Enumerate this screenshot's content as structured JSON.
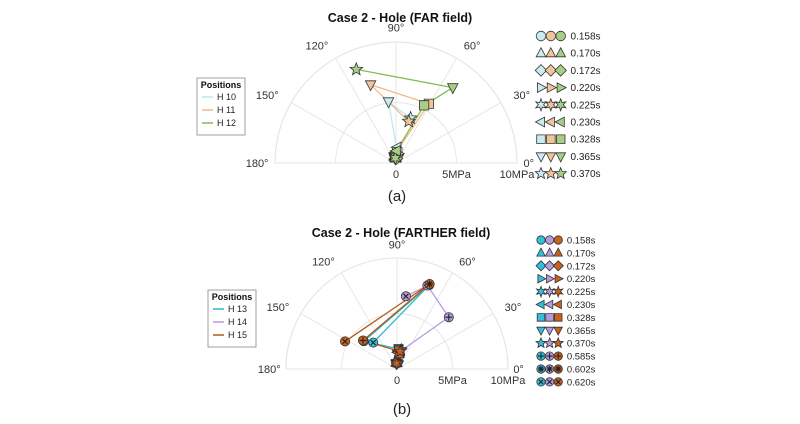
{
  "colors": {
    "series_top": [
      "#c8ecef",
      "#f3c39a",
      "#a6cf84"
    ],
    "series_bottom": [
      "#33bfd9",
      "#b69ae0",
      "#c8601e"
    ],
    "series_top_line": [
      "#bfe9ee",
      "#f4b886",
      "#7fbf52"
    ],
    "series_bottom_line": [
      "#2fb8cc",
      "#b89be6",
      "#b45a14"
    ],
    "grid": "#e4e4e4",
    "axis_text": "#333333"
  },
  "captions": [
    "(a)",
    "(b)"
  ],
  "chart_data": [
    {
      "type": "polar-scatter",
      "title": "Case 2 - Hole (FAR field)",
      "angle_ticks": [
        "0°",
        "30°",
        "60°",
        "90°",
        "120°",
        "150°",
        "180°"
      ],
      "radius_ticks": [
        "0",
        "5MPa",
        "10MPa"
      ],
      "rlim": [
        0,
        10
      ],
      "thetalim": [
        0,
        180
      ],
      "legend_title": "Positions",
      "legend_placement": "left",
      "series": [
        {
          "name": "H 10",
          "points": [
            {
              "time": "0.158s",
              "theta": 95,
              "r": 0.5
            },
            {
              "time": "0.170s",
              "theta": 90,
              "r": 0.5
            },
            {
              "time": "0.172s",
              "theta": 92,
              "r": 0.6
            },
            {
              "time": "0.220s",
              "theta": 80,
              "r": 0.7
            },
            {
              "time": "0.225s",
              "theta": 100,
              "r": 0.6
            },
            {
              "time": "0.230s",
              "theta": 86,
              "r": 1.3
            },
            {
              "time": "0.328s",
              "theta": 83,
              "r": 0.9
            },
            {
              "time": "0.365s",
              "theta": 97,
              "r": 5.1
            },
            {
              "time": "0.370s",
              "theta": 72,
              "r": 3.9
            }
          ]
        },
        {
          "name": "H 11",
          "points": [
            {
              "time": "0.158s",
              "theta": 93,
              "r": 0.6
            },
            {
              "time": "0.170s",
              "theta": 88,
              "r": 0.6
            },
            {
              "time": "0.172s",
              "theta": 87,
              "r": 0.6
            },
            {
              "time": "0.220s",
              "theta": 77,
              "r": 0.8
            },
            {
              "time": "0.225s",
              "theta": 102,
              "r": 0.5
            },
            {
              "time": "0.230s",
              "theta": 89,
              "r": 0.9
            },
            {
              "time": "0.328s",
              "theta": 61,
              "r": 5.6
            },
            {
              "time": "0.365s",
              "theta": 108,
              "r": 6.8
            },
            {
              "time": "0.370s",
              "theta": 73,
              "r": 3.6
            }
          ]
        },
        {
          "name": "H 12",
          "points": [
            {
              "time": "0.158s",
              "theta": 91,
              "r": 0.5
            },
            {
              "time": "0.170s",
              "theta": 92,
              "r": 0.4
            },
            {
              "time": "0.172s",
              "theta": 85,
              "r": 0.4
            },
            {
              "time": "0.220s",
              "theta": 81,
              "r": 0.6
            },
            {
              "time": "0.225s",
              "theta": 98,
              "r": 0.4
            },
            {
              "time": "0.230s",
              "theta": 88,
              "r": 1.0
            },
            {
              "time": "0.328s",
              "theta": 64,
              "r": 5.3
            },
            {
              "time": "0.365s",
              "theta": 53,
              "r": 7.8
            },
            {
              "time": "0.370s",
              "theta": 113,
              "r": 8.4
            }
          ]
        }
      ],
      "time_markers": [
        {
          "time": "0.158s",
          "shape": "circle"
        },
        {
          "time": "0.170s",
          "shape": "triangle-up"
        },
        {
          "time": "0.172s",
          "shape": "diamond"
        },
        {
          "time": "0.220s",
          "shape": "triangle-right"
        },
        {
          "time": "0.225s",
          "shape": "star6"
        },
        {
          "time": "0.230s",
          "shape": "triangle-left"
        },
        {
          "time": "0.328s",
          "shape": "square"
        },
        {
          "time": "0.365s",
          "shape": "triangle-down"
        },
        {
          "time": "0.370s",
          "shape": "star5"
        }
      ]
    },
    {
      "type": "polar-scatter",
      "title": "Case 2 - Hole (FARTHER field)",
      "angle_ticks": [
        "0°",
        "30°",
        "60°",
        "90°",
        "120°",
        "150°",
        "180°"
      ],
      "radius_ticks": [
        "0",
        "5MPa",
        "10MPa"
      ],
      "rlim": [
        0,
        10
      ],
      "thetalim": [
        0,
        180
      ],
      "legend_title": "Positions",
      "legend_placement": "left",
      "series": [
        {
          "name": "H 13",
          "points": [
            {
              "time": "0.158s",
              "theta": 91,
              "r": 0.6
            },
            {
              "time": "0.170s",
              "theta": 89,
              "r": 0.6
            },
            {
              "time": "0.172s",
              "theta": 92,
              "r": 0.7
            },
            {
              "time": "0.220s",
              "theta": 84,
              "r": 0.8
            },
            {
              "time": "0.225s",
              "theta": 96,
              "r": 0.6
            },
            {
              "time": "0.230s",
              "theta": 88,
              "r": 1.7
            },
            {
              "time": "0.328s",
              "theta": 80,
              "r": 1.5
            },
            {
              "time": "0.365s",
              "theta": 86,
              "r": 1.9
            },
            {
              "time": "0.370s",
              "theta": 78,
              "r": 1.8
            },
            {
              "time": "0.585s",
              "theta": 140,
              "r": 3.9
            },
            {
              "time": "0.602s",
              "theta": 69,
              "r": 8.1
            },
            {
              "time": "0.620s",
              "theta": 132,
              "r": 3.2
            }
          ]
        },
        {
          "name": "H 14",
          "points": [
            {
              "time": "0.158s",
              "theta": 93,
              "r": 0.6
            },
            {
              "time": "0.170s",
              "theta": 87,
              "r": 0.6
            },
            {
              "time": "0.172s",
              "theta": 90,
              "r": 0.6
            },
            {
              "time": "0.220s",
              "theta": 82,
              "r": 0.7
            },
            {
              "time": "0.225s",
              "theta": 98,
              "r": 0.5
            },
            {
              "time": "0.230s",
              "theta": 87,
              "r": 1.6
            },
            {
              "time": "0.328s",
              "theta": 79,
              "r": 1.4
            },
            {
              "time": "0.365s",
              "theta": 85,
              "r": 1.8
            },
            {
              "time": "0.370s",
              "theta": 77,
              "r": 1.7
            },
            {
              "time": "0.585s",
              "theta": 45,
              "r": 6.6
            },
            {
              "time": "0.602s",
              "theta": 70,
              "r": 8.0
            },
            {
              "time": "0.620s",
              "theta": 83,
              "r": 6.6
            }
          ]
        },
        {
          "name": "H 15",
          "points": [
            {
              "time": "0.158s",
              "theta": 92,
              "r": 0.5
            },
            {
              "time": "0.170s",
              "theta": 89,
              "r": 0.5
            },
            {
              "time": "0.172s",
              "theta": 91,
              "r": 0.5
            },
            {
              "time": "0.220s",
              "theta": 86,
              "r": 0.6
            },
            {
              "time": "0.225s",
              "theta": 95,
              "r": 0.5
            },
            {
              "time": "0.230s",
              "theta": 89,
              "r": 1.5
            },
            {
              "time": "0.328s",
              "theta": 81,
              "r": 1.4
            },
            {
              "time": "0.365s",
              "theta": 86,
              "r": 1.7
            },
            {
              "time": "0.370s",
              "theta": 80,
              "r": 1.6
            },
            {
              "time": "0.585s",
              "theta": 140,
              "r": 4.0
            },
            {
              "time": "0.602s",
              "theta": 69,
              "r": 8.2
            },
            {
              "time": "0.620s",
              "theta": 152,
              "r": 5.3
            }
          ]
        }
      ],
      "time_markers": [
        {
          "time": "0.158s",
          "shape": "circle"
        },
        {
          "time": "0.170s",
          "shape": "triangle-up"
        },
        {
          "time": "0.172s",
          "shape": "diamond"
        },
        {
          "time": "0.220s",
          "shape": "triangle-right"
        },
        {
          "time": "0.225s",
          "shape": "star6"
        },
        {
          "time": "0.230s",
          "shape": "triangle-left"
        },
        {
          "time": "0.328s",
          "shape": "square"
        },
        {
          "time": "0.365s",
          "shape": "triangle-down"
        },
        {
          "time": "0.370s",
          "shape": "star5"
        },
        {
          "time": "0.585s",
          "shape": "plus"
        },
        {
          "time": "0.602s",
          "shape": "asterisk"
        },
        {
          "time": "0.620s",
          "shape": "x-circle"
        }
      ]
    }
  ]
}
